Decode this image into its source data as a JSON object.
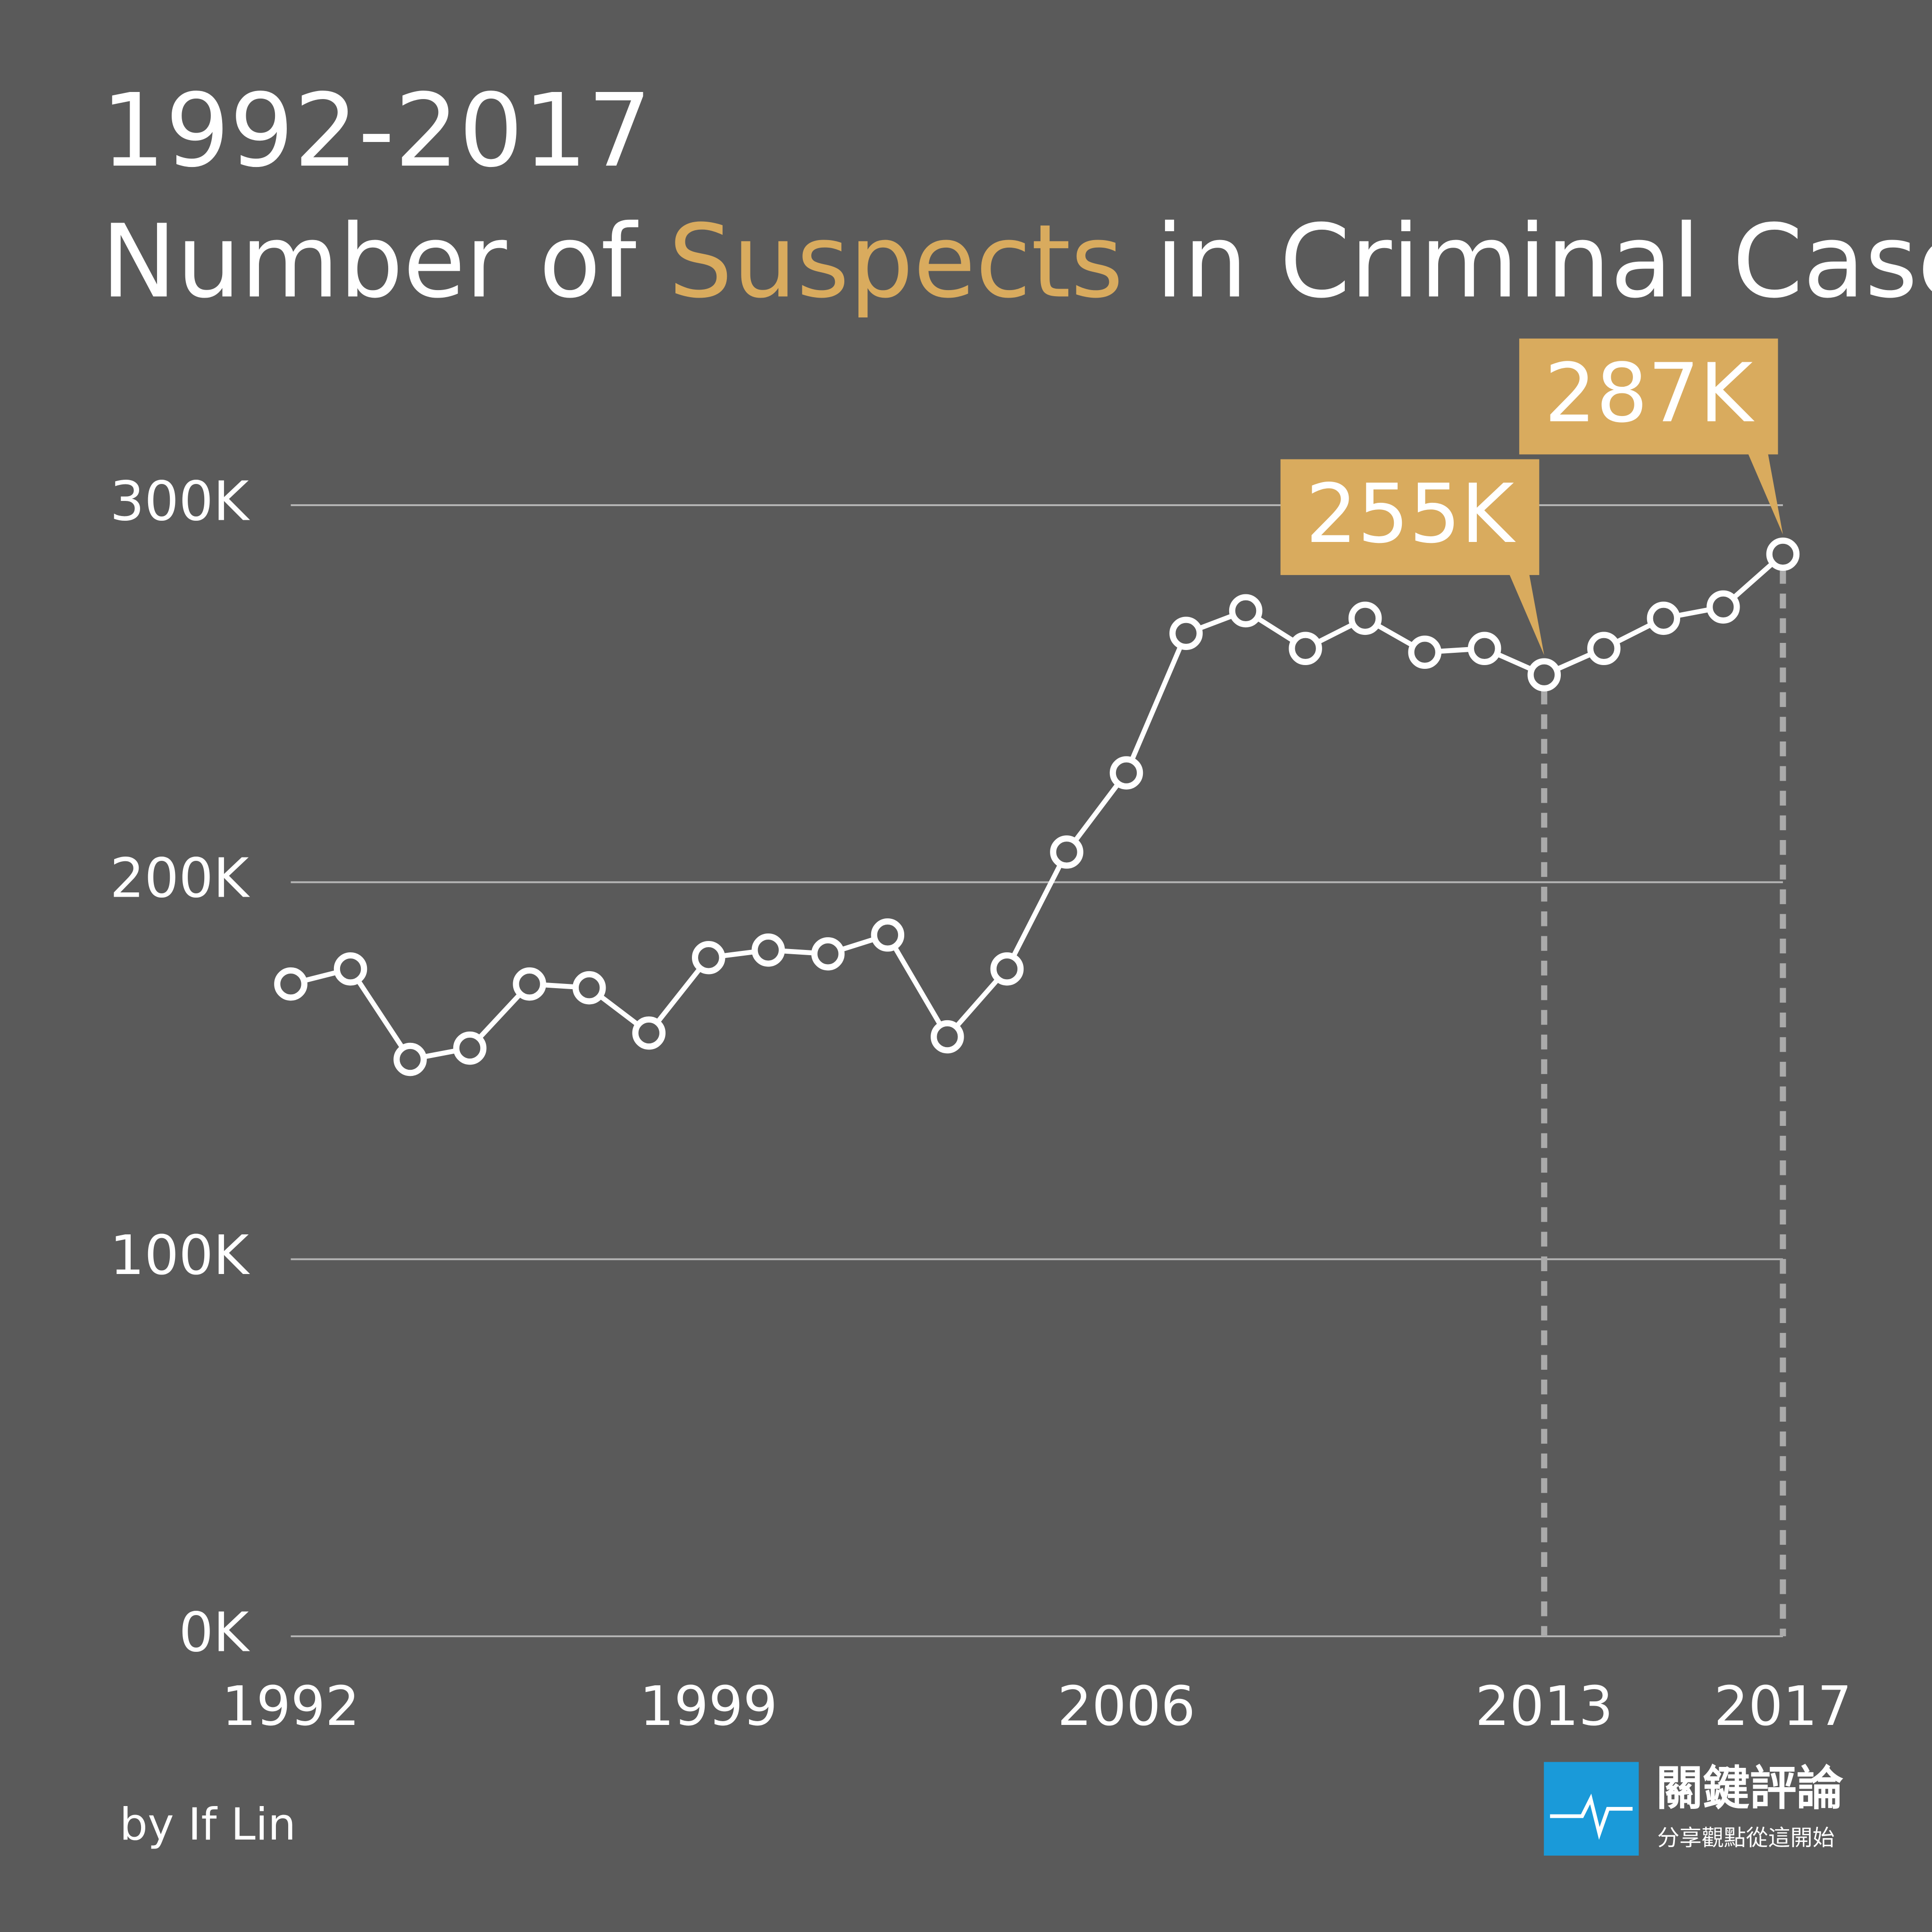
{
  "chart_data": {
    "type": "line",
    "title": "1992-2017",
    "subtitle": [
      "Number of",
      "Suspects",
      "in Criminal Cases"
    ],
    "subtitle_highlight_color": "#d9ab5e",
    "x": [
      1992,
      1993,
      1994,
      1995,
      1996,
      1997,
      1998,
      1999,
      2000,
      2001,
      2002,
      2003,
      2004,
      2005,
      2006,
      2007,
      2008,
      2009,
      2010,
      2011,
      2012,
      2013,
      2014,
      2015,
      2016,
      2017
    ],
    "series": [
      {
        "color": "#ffffff",
        "values": [
          173,
          177,
          153,
          156,
          173,
          172,
          160,
          180,
          182,
          181,
          186,
          159,
          177,
          208,
          229,
          266,
          272,
          262,
          270,
          261,
          262,
          255,
          262,
          270,
          273,
          287
        ],
        "value_labels": [
          null,
          null,
          null,
          null,
          null,
          null,
          null,
          null,
          null,
          null,
          null,
          null,
          null,
          null,
          null,
          null,
          null,
          null,
          null,
          null,
          null,
          "255K",
          null,
          null,
          null,
          "287K"
        ]
      }
    ],
    "callout_color": "#d9ab5e",
    "xlim": [
      1992,
      2017
    ],
    "xticks": [
      1992,
      1999,
      2006,
      2013,
      2017
    ],
    "ylim": [
      0,
      300
    ],
    "yticks": [
      {
        "value": 0,
        "label": "0K"
      },
      {
        "value": 100,
        "label": "100K"
      },
      {
        "value": 200,
        "label": "200K"
      },
      {
        "value": 300,
        "label": "300K"
      }
    ],
    "grid": true,
    "credit": "by If Lin",
    "logo": {
      "name": "關鍵評論",
      "slogan": "分享觀點從這開始"
    }
  }
}
